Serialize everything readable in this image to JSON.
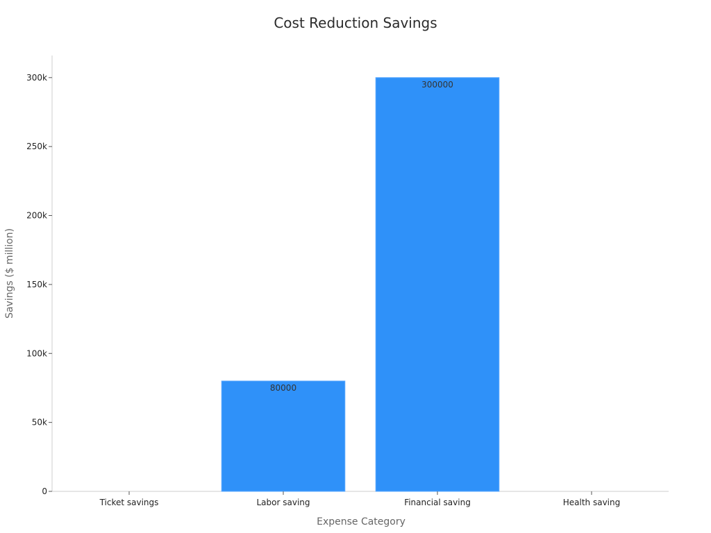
{
  "chart_data": {
    "type": "bar",
    "title": "Cost Reduction Savings",
    "xlabel": "Expense Category",
    "ylabel": "Savings ($ million)",
    "categories": [
      "Ticket savings",
      "Labor saving",
      "Financial saving",
      "Health saving"
    ],
    "values": [
      0,
      80000,
      300000,
      0
    ],
    "data_labels": [
      "",
      "80000",
      "300000",
      ""
    ],
    "ylim": [
      0,
      316000
    ],
    "yticks": [
      0,
      50000,
      100000,
      150000,
      200000,
      250000,
      300000
    ],
    "ytick_labels": [
      "0",
      "50k",
      "100k",
      "150k",
      "200k",
      "250k",
      "300k"
    ],
    "bar_color": "#2f91f9",
    "grid": false,
    "legend": "none"
  }
}
